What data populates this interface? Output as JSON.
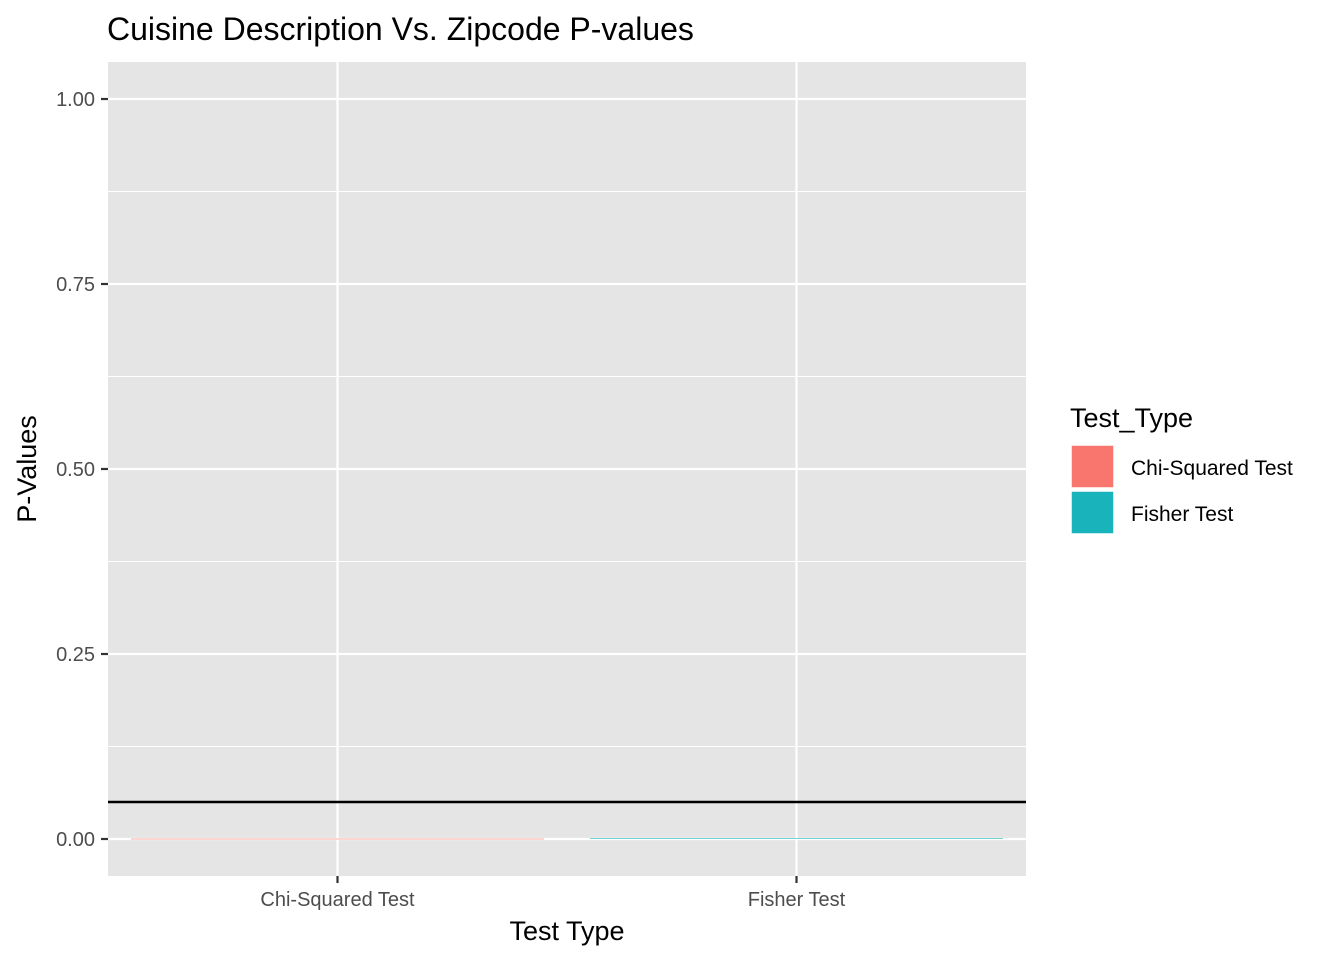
{
  "chart_data": {
    "type": "bar",
    "title": "Cuisine Description Vs. Zipcode P-values",
    "xlabel": "Test Type",
    "ylabel": "P-Values",
    "categories": [
      "Chi-Squared Test",
      "Fisher Test"
    ],
    "values": [
      0.0,
      0.0005
    ],
    "colors": [
      "#f8766d",
      "#19b4bb"
    ],
    "ylim": [
      -0.05,
      1.05
    ],
    "yticks": [
      0.0,
      0.25,
      0.5,
      0.75,
      1.0
    ],
    "ytick_labels": [
      "0.00",
      "0.25",
      "0.50",
      "0.75",
      "1.00"
    ],
    "reference_line": {
      "y": 0.05,
      "color": "#000000"
    },
    "grid": true,
    "panel_background": "#e5e5e5",
    "legend": {
      "title": "Test_Type",
      "placement": "right",
      "entries": [
        {
          "label": "Chi-Squared Test",
          "color": "#f8766d"
        },
        {
          "label": "Fisher Test",
          "color": "#19b4bb"
        }
      ]
    }
  }
}
